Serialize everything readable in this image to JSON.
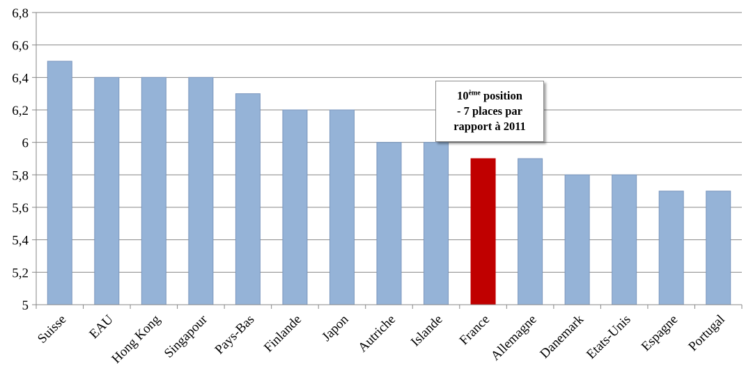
{
  "chart_data": {
    "type": "bar",
    "categories": [
      "Suisse",
      "EAU",
      "Hong Kong",
      "Singapour",
      "Pays-Bas",
      "Finlande",
      "Japon",
      "Autriche",
      "Islande",
      "France",
      "Allemagne",
      "Danemark",
      "Etats-Unis",
      "Espagne",
      "Portugal"
    ],
    "values": [
      6.5,
      6.4,
      6.4,
      6.4,
      6.3,
      6.2,
      6.2,
      6.0,
      6.0,
      5.9,
      5.9,
      5.8,
      5.8,
      5.7,
      5.7
    ],
    "ylim": [
      5,
      6.8
    ],
    "yticks": [
      "5",
      "5,2",
      "5,4",
      "5,6",
      "5,8",
      "6",
      "6,2",
      "6,4",
      "6,6",
      "6,8"
    ],
    "highlight_category": "France",
    "colors": {
      "bar": "#95b3d7",
      "bar_border": "#7a96bd",
      "highlight": "#c00000",
      "grid": "#868686"
    },
    "grid": true,
    "annotation": {
      "number": "10",
      "superscript": "ème",
      "line1_rest": " position",
      "line2": "- 7 places par",
      "line3": "rapport à 2011"
    }
  }
}
